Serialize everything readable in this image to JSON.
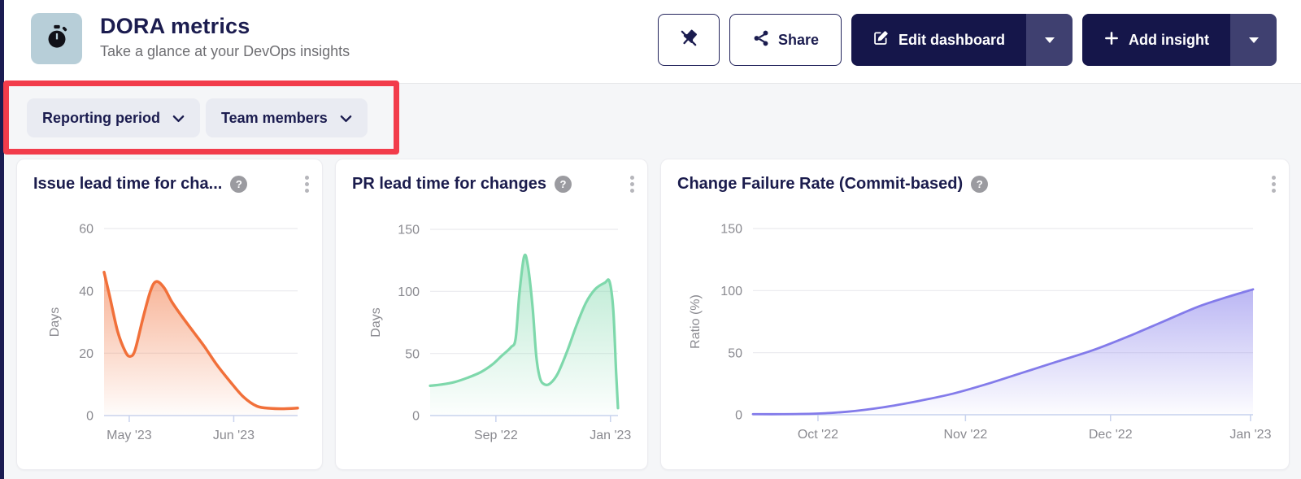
{
  "colors": {
    "navy": "#1b1c4f",
    "button_dark": "#15164a",
    "button_caret_segment": "#3f4070",
    "annotation_red": "#f23c4b",
    "page_bg": "#f5f6f8",
    "tile_bg": "#b7ced8",
    "chart_orange": "#f1703a",
    "chart_green": "#7ed8ab",
    "chart_purple": "#837bea"
  },
  "header": {
    "title": "DORA metrics",
    "subtitle": "Take a glance at your DevOps insights",
    "actions": {
      "share": "Share",
      "edit_dashboard": "Edit dashboard",
      "add_insight": "Add insight"
    }
  },
  "filters": {
    "reporting_period": "Reporting period",
    "team_members": "Team members"
  },
  "help_glyph": "?",
  "chart_data": [
    {
      "type": "area",
      "title": "Issue lead time for cha...",
      "ylabel": "Days",
      "ylim": [
        0,
        60
      ],
      "yticks": [
        0,
        20,
        40,
        60
      ],
      "xticks": [
        {
          "label": "May '23",
          "pos": 0.13
        },
        {
          "label": "Jun '23",
          "pos": 0.67
        }
      ],
      "color": "#f1703a",
      "points": [
        [
          0,
          46
        ],
        [
          0.03,
          38
        ],
        [
          0.07,
          27
        ],
        [
          0.11,
          20.5
        ],
        [
          0.135,
          19
        ],
        [
          0.16,
          21
        ],
        [
          0.2,
          31
        ],
        [
          0.24,
          40
        ],
        [
          0.27,
          43
        ],
        [
          0.31,
          41
        ],
        [
          0.35,
          36.5
        ],
        [
          0.4,
          32
        ],
        [
          0.46,
          27
        ],
        [
          0.52,
          22
        ],
        [
          0.58,
          16.5
        ],
        [
          0.65,
          11
        ],
        [
          0.72,
          6
        ],
        [
          0.79,
          3
        ],
        [
          0.86,
          2.3
        ],
        [
          0.93,
          2.2
        ],
        [
          1,
          2.4
        ]
      ]
    },
    {
      "type": "area",
      "title": "PR lead time for changes",
      "ylabel": "Days",
      "ylim": [
        0,
        150
      ],
      "yticks": [
        0,
        50,
        100,
        150
      ],
      "xticks": [
        {
          "label": "Sep '22",
          "pos": 0.35
        },
        {
          "label": "Jan '23",
          "pos": 0.96
        }
      ],
      "color": "#7ed8ab",
      "points": [
        [
          0,
          24
        ],
        [
          0.06,
          25
        ],
        [
          0.13,
          27
        ],
        [
          0.2,
          30.5
        ],
        [
          0.27,
          35
        ],
        [
          0.33,
          41
        ],
        [
          0.38,
          48
        ],
        [
          0.43,
          55
        ],
        [
          0.455,
          62
        ],
        [
          0.475,
          98
        ],
        [
          0.5,
          128
        ],
        [
          0.52,
          121
        ],
        [
          0.545,
          88
        ],
        [
          0.565,
          48
        ],
        [
          0.585,
          30
        ],
        [
          0.61,
          25
        ],
        [
          0.64,
          26
        ],
        [
          0.68,
          34
        ],
        [
          0.73,
          52
        ],
        [
          0.78,
          73
        ],
        [
          0.83,
          91
        ],
        [
          0.88,
          102
        ],
        [
          0.93,
          107
        ],
        [
          0.955,
          108
        ],
        [
          0.975,
          85
        ],
        [
          0.99,
          35
        ],
        [
          1,
          6
        ]
      ]
    },
    {
      "type": "area",
      "title": "Change Failure Rate (Commit-based)",
      "ylabel": "Ratio (%)",
      "ylim": [
        0,
        150
      ],
      "yticks": [
        0,
        50,
        100,
        150
      ],
      "xticks": [
        {
          "label": "Oct '22",
          "pos": 0.13
        },
        {
          "label": "Nov '22",
          "pos": 0.425
        },
        {
          "label": "Dec '22",
          "pos": 0.715
        },
        {
          "label": "Jan '23",
          "pos": 0.995
        }
      ],
      "color": "#837bea",
      "points": [
        [
          0,
          0.5
        ],
        [
          0.06,
          0.5
        ],
        [
          0.13,
          1
        ],
        [
          0.19,
          2.5
        ],
        [
          0.26,
          6
        ],
        [
          0.33,
          11
        ],
        [
          0.4,
          17
        ],
        [
          0.47,
          25
        ],
        [
          0.54,
          34
        ],
        [
          0.61,
          43
        ],
        [
          0.68,
          52
        ],
        [
          0.75,
          63
        ],
        [
          0.82,
          75
        ],
        [
          0.89,
          87
        ],
        [
          0.95,
          95
        ],
        [
          1,
          101
        ]
      ]
    }
  ]
}
